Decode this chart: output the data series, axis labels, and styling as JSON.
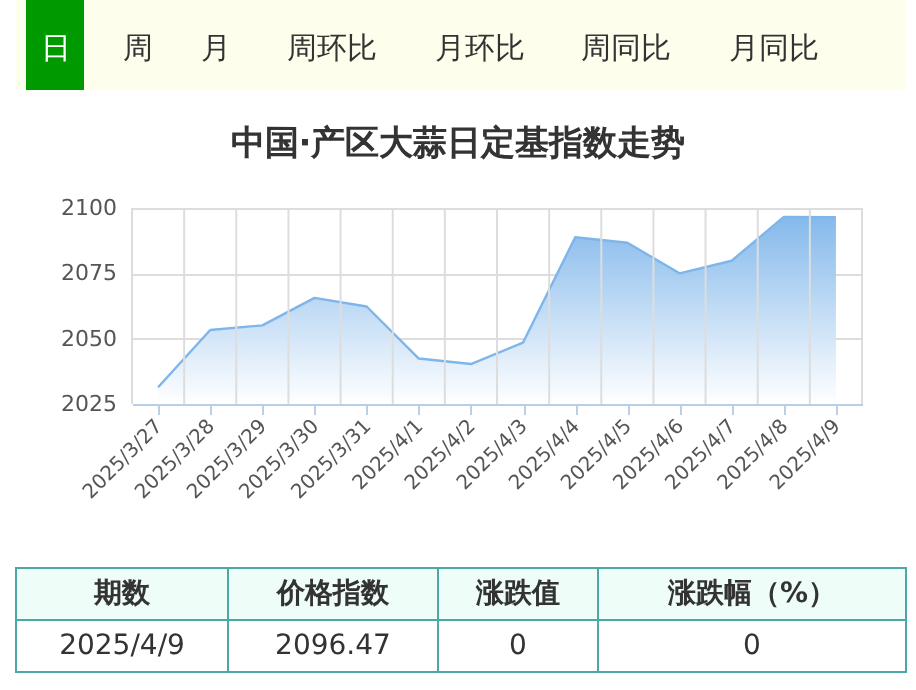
{
  "chart_data": {
    "type": "area",
    "title": "中国·产区大蒜日定基指数走势",
    "categories": [
      "2025/3/27",
      "2025/3/28",
      "2025/3/29",
      "2025/3/30",
      "2025/3/31",
      "2025/4/1",
      "2025/4/2",
      "2025/4/3",
      "2025/4/4",
      "2025/4/5",
      "2025/4/6",
      "2025/4/7",
      "2025/4/8",
      "2025/4/9"
    ],
    "values": [
      2031.4,
      2053.3,
      2055.1,
      2065.6,
      2062.3,
      2042.4,
      2040.3,
      2048.5,
      2088.8,
      2086.7,
      2075.0,
      2079.8,
      2096.6,
      2096.5
    ],
    "color": "#7eb5ea",
    "ylim": [
      2025,
      2100
    ],
    "yticks": [
      2025,
      2050,
      2075,
      2100
    ],
    "grid": true,
    "annotations": [
      "日",
      "周",
      "月",
      "周环比",
      "月环比",
      "周同比",
      "月同比",
      "期数",
      "价格指数",
      "涨跌值",
      "涨跌幅（%）",
      "2025/4/9",
      "2096.47",
      "0",
      "0"
    ]
  }
}
